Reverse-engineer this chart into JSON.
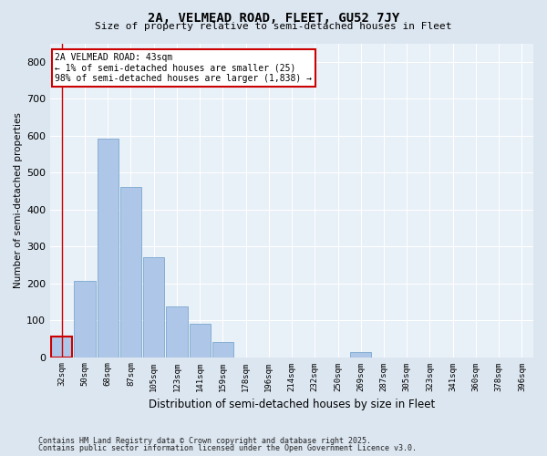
{
  "title1": "2A, VELMEAD ROAD, FLEET, GU52 7JY",
  "title2": "Size of property relative to semi-detached houses in Fleet",
  "xlabel": "Distribution of semi-detached houses by size in Fleet",
  "ylabel": "Number of semi-detached properties",
  "footnote1": "Contains HM Land Registry data © Crown copyright and database right 2025.",
  "footnote2": "Contains public sector information licensed under the Open Government Licence v3.0.",
  "bar_labels": [
    "32sqm",
    "50sqm",
    "68sqm",
    "87sqm",
    "105sqm",
    "123sqm",
    "141sqm",
    "159sqm",
    "178sqm",
    "196sqm",
    "214sqm",
    "232sqm",
    "250sqm",
    "269sqm",
    "287sqm",
    "305sqm",
    "323sqm",
    "341sqm",
    "360sqm",
    "378sqm",
    "396sqm"
  ],
  "bar_values": [
    55,
    207,
    593,
    462,
    271,
    137,
    91,
    40,
    0,
    0,
    0,
    0,
    0,
    13,
    0,
    0,
    0,
    0,
    0,
    0,
    0
  ],
  "bar_color": "#aec6e8",
  "bar_edge_color": "#6a9fc8",
  "highlight_index": 0,
  "highlight_color": "#cc0000",
  "annotation_title": "2A VELMEAD ROAD: 43sqm",
  "annotation_line1": "← 1% of semi-detached houses are smaller (25)",
  "annotation_line2": "98% of semi-detached houses are larger (1,838) →",
  "annotation_box_color": "#cc0000",
  "ylim": [
    0,
    850
  ],
  "yticks": [
    0,
    100,
    200,
    300,
    400,
    500,
    600,
    700,
    800
  ],
  "bg_color": "#dce6f0",
  "plot_bg_color": "#e8f0f8",
  "grid_color": "#ffffff"
}
